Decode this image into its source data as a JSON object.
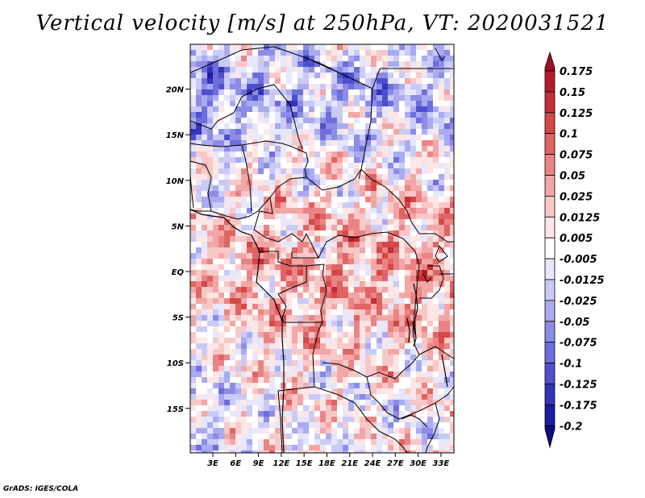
{
  "title": "Vertical velocity [m/s] at 250hPa, VT: 2020031521",
  "credit": "GrADS: IGES/COLA",
  "map": {
    "variable": "Vertical velocity",
    "units": "m/s",
    "level": "250hPa",
    "valid_time": "2020031521",
    "lat_ticks": [
      "20N",
      "15N",
      "10N",
      "5N",
      "EQ",
      "5S",
      "10S",
      "15S"
    ],
    "lon_ticks": [
      "3E",
      "6E",
      "9E",
      "12E",
      "15E",
      "18E",
      "21E",
      "24E",
      "27E",
      "30E",
      "33E"
    ]
  },
  "colorbar": {
    "levels": [
      "0.175",
      "0.15",
      "0.125",
      "0.1",
      "0.075",
      "0.05",
      "0.025",
      "0.0125",
      "0.005",
      "-0.005",
      "-0.0125",
      "-0.025",
      "-0.05",
      "-0.075",
      "-0.1",
      "-0.125",
      "-0.175",
      "-0.2"
    ],
    "colors": [
      "#a01020",
      "#b41c2a",
      "#c42e36",
      "#d44848",
      "#e06464",
      "#ea8484",
      "#f2a6a6",
      "#f8c8c8",
      "#fde6e6",
      "#ffffff",
      "#e6e6fc",
      "#cacaf6",
      "#aaaaf0",
      "#8c8ce6",
      "#6e6edc",
      "#5050cc",
      "#3434b8",
      "#1c1ca0",
      "#0c0c84"
    ]
  }
}
